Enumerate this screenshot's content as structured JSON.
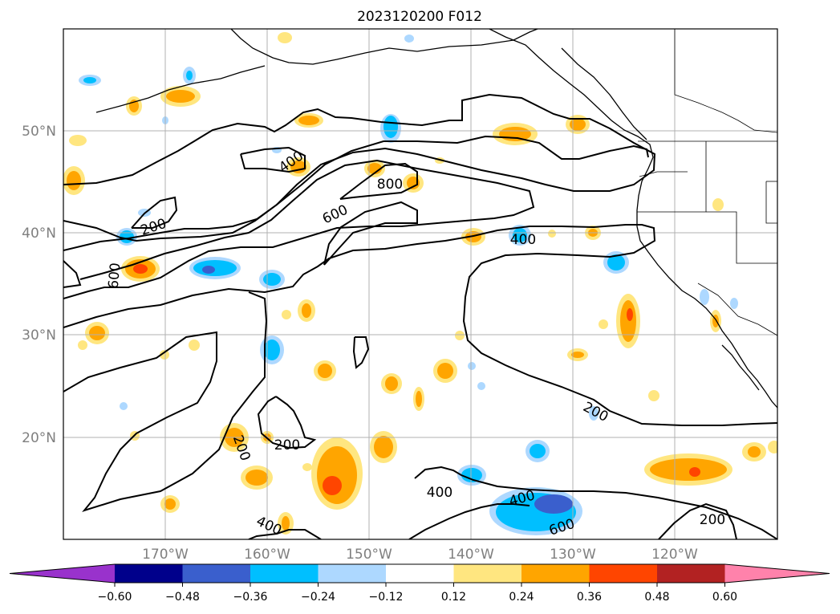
{
  "title": "2023120200 F012",
  "map": {
    "lat_labels": [
      "50°N",
      "40°N",
      "30°N",
      "20°N"
    ],
    "lon_labels": [
      "170°W",
      "160°W",
      "150°W",
      "140°W",
      "130°W",
      "120°W"
    ],
    "gridlines": true,
    "colors": {
      "land_border": "#000000",
      "grid": "#b0b0b0",
      "contour": "#000000"
    }
  },
  "contour_labels": [
    {
      "text": "400",
      "name": "contour-label-400-a"
    },
    {
      "text": "800",
      "name": "contour-label-800"
    },
    {
      "text": "600",
      "name": "contour-label-600-a"
    },
    {
      "text": "200",
      "name": "contour-label-200-a"
    },
    {
      "text": "600",
      "name": "contour-label-600-b"
    },
    {
      "text": "400",
      "name": "contour-label-400-b"
    },
    {
      "text": "200",
      "name": "contour-label-200-b"
    },
    {
      "text": "200",
      "name": "contour-label-200-c"
    },
    {
      "text": "200",
      "name": "contour-label-200-d"
    },
    {
      "text": "400",
      "name": "contour-label-400-c"
    },
    {
      "text": "400",
      "name": "contour-label-400-d"
    },
    {
      "text": "400",
      "name": "contour-label-400-e"
    },
    {
      "text": "600",
      "name": "contour-label-600-c"
    },
    {
      "text": "200",
      "name": "contour-label-200-e"
    }
  ],
  "colorbar": {
    "ticks": [
      "−0.60",
      "−0.48",
      "−0.36",
      "−0.24",
      "−0.12",
      "0.12",
      "0.24",
      "0.36",
      "0.48",
      "0.60"
    ],
    "colors": [
      "#9932cc",
      "#00008b",
      "#3a5fcd",
      "#00bfff",
      "#add8ff",
      "#ffffff",
      "#ffe680",
      "#ffa500",
      "#ff4500",
      "#b22222",
      "#ff82ab"
    ]
  }
}
